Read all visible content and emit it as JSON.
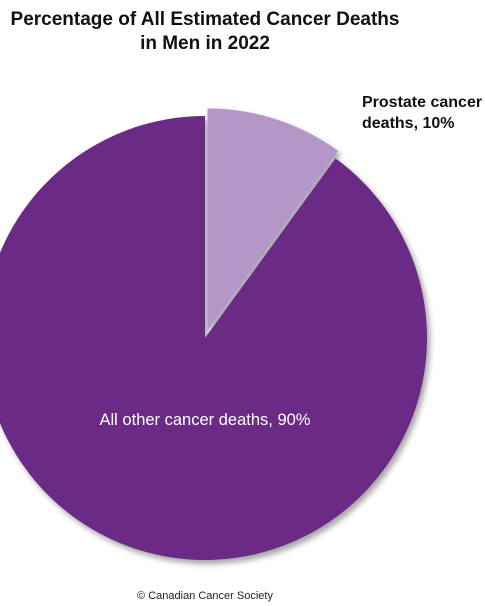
{
  "chart_data": {
    "type": "pie",
    "title": [
      "Percentage of All Estimated Cancer Deaths",
      "in Men in 2022"
    ],
    "slices": [
      {
        "label": [
          "Prostate cancer",
          "deaths, 10%"
        ],
        "value": 10,
        "color": "#b497c8",
        "exploded": true
      },
      {
        "label": [
          "All other cancer deaths, 90%"
        ],
        "value": 90,
        "color": "#6a2c86",
        "exploded": false
      }
    ],
    "start_angle_deg": 0,
    "direction": "clockwise"
  },
  "footer": {
    "credit": "© Canadian Cancer Society"
  }
}
